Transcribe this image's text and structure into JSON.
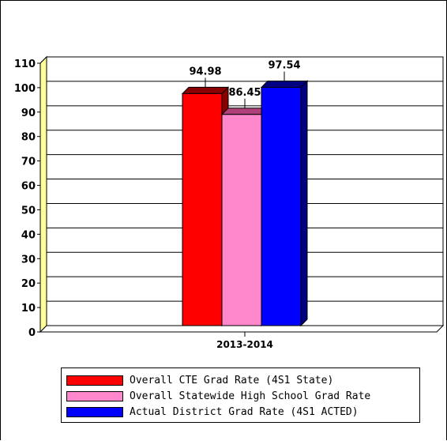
{
  "chart_data": {
    "type": "bar",
    "categories": [
      "2013-2014"
    ],
    "series": [
      {
        "name": "Overall CTE Grad Rate (4S1 State)",
        "values": [
          94.98
        ],
        "color": "#ff0000",
        "dark": "#8a0000",
        "label": "94.98"
      },
      {
        "name": "Overall Statewide High School Grad Rate",
        "values": [
          86.45
        ],
        "color": "#ff88cc",
        "dark": "#b0407a",
        "label": "86.45"
      },
      {
        "name": "Actual District Grad Rate (4S1 ACTED)",
        "values": [
          97.54
        ],
        "color": "#0000ff",
        "dark": "#000080",
        "label": "97.54"
      }
    ],
    "ylim": [
      0,
      110
    ],
    "yticks": [
      "0",
      "10",
      "20",
      "30",
      "40",
      "50",
      "60",
      "70",
      "80",
      "90",
      "100",
      "110"
    ],
    "grid": true,
    "legend_position": "bottom",
    "title": "",
    "xlabel": "",
    "ylabel": ""
  }
}
